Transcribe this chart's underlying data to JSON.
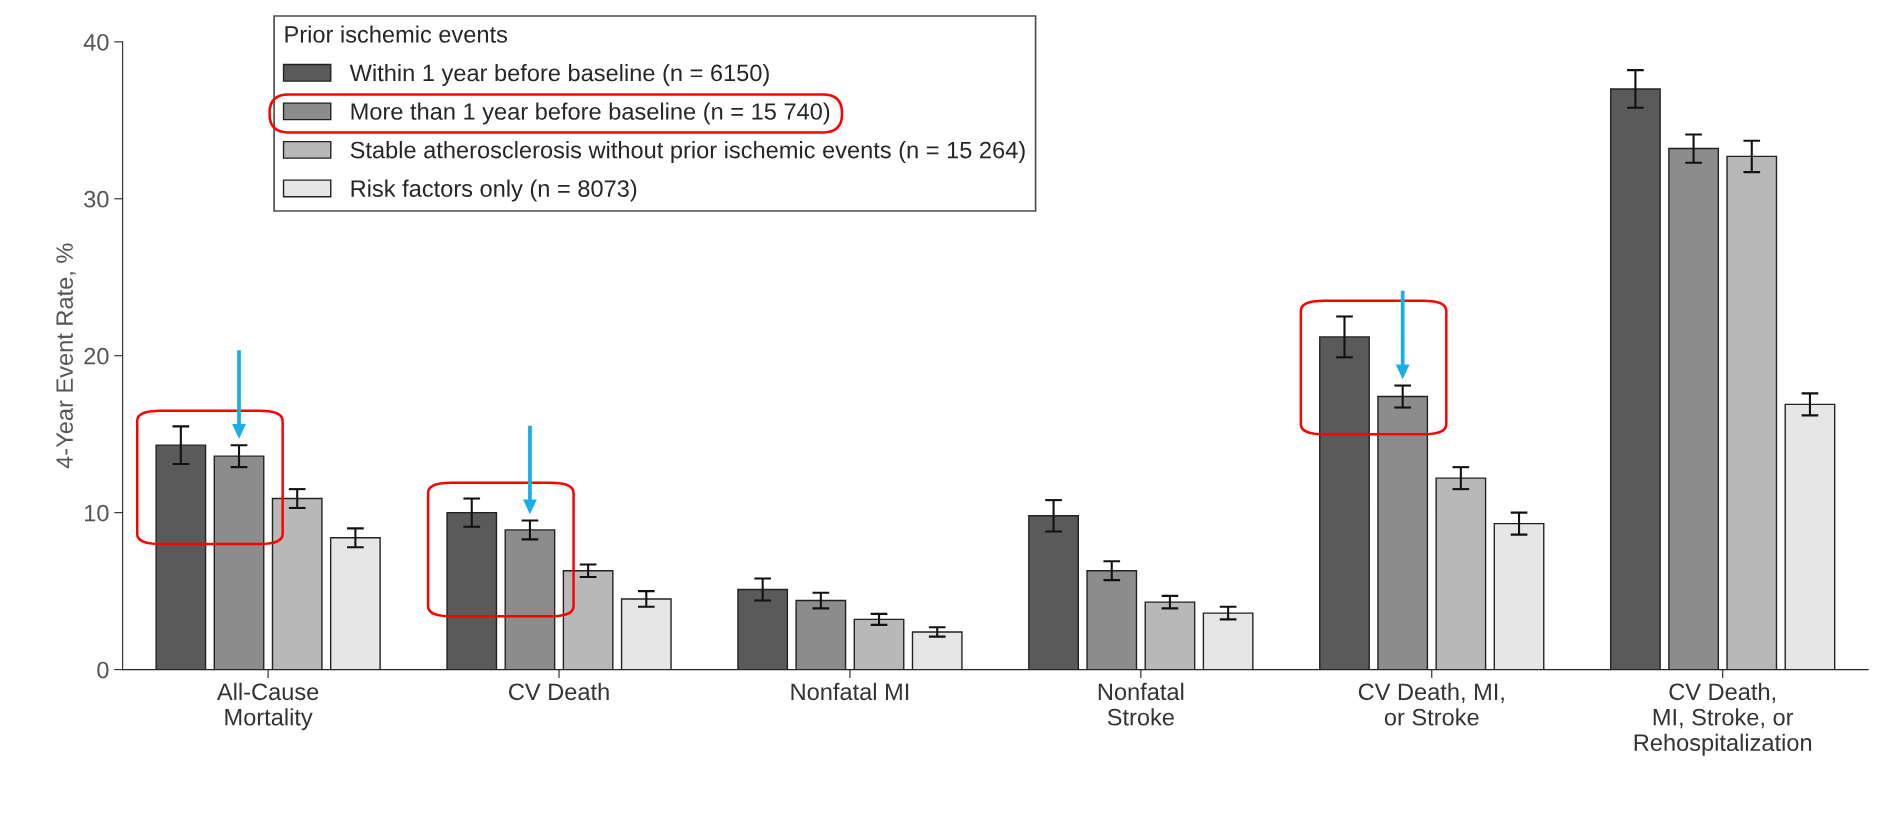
{
  "chart_data": {
    "type": "bar",
    "ylabel": "4-Year Event Rate, %",
    "categories": [
      "All-Cause\nMortality",
      "CV Death",
      "Nonfatal MI",
      "Nonfatal\nStroke",
      "CV Death, MI,\nor Stroke",
      "CV Death,\nMI, Stroke, or\nRehospitalization"
    ],
    "legend_title": "Prior ischemic events",
    "series": [
      {
        "name": "Within 1 year before baseline (n = 6150)",
        "color": "#5a5a5a",
        "values": [
          14.3,
          10.0,
          5.1,
          9.8,
          21.2,
          37.0
        ],
        "errors": [
          1.2,
          0.9,
          0.7,
          1.0,
          1.3,
          1.2
        ]
      },
      {
        "name": "More than 1 year before baseline (n = 15 740)",
        "color": "#8c8c8c",
        "values": [
          13.6,
          8.9,
          4.4,
          6.3,
          17.4,
          33.2
        ],
        "errors": [
          0.7,
          0.6,
          0.5,
          0.6,
          0.7,
          0.9
        ]
      },
      {
        "name": "Stable atherosclerosis without prior ischemic events (n = 15 264)",
        "color": "#b8b8b8",
        "values": [
          10.9,
          6.3,
          3.2,
          4.3,
          12.2,
          32.7
        ],
        "errors": [
          0.6,
          0.4,
          0.35,
          0.4,
          0.7,
          1.0
        ]
      },
      {
        "name": "Risk factors only (n = 8073)",
        "color": "#e6e6e6",
        "values": [
          8.4,
          4.5,
          2.4,
          3.6,
          9.3,
          16.9
        ],
        "errors": [
          0.6,
          0.5,
          0.3,
          0.4,
          0.7,
          0.7
        ]
      }
    ],
    "ylim": [
      0,
      40
    ],
    "yticks": [
      0,
      10,
      20,
      30,
      40
    ],
    "grid": false,
    "legend": "top left"
  }
}
